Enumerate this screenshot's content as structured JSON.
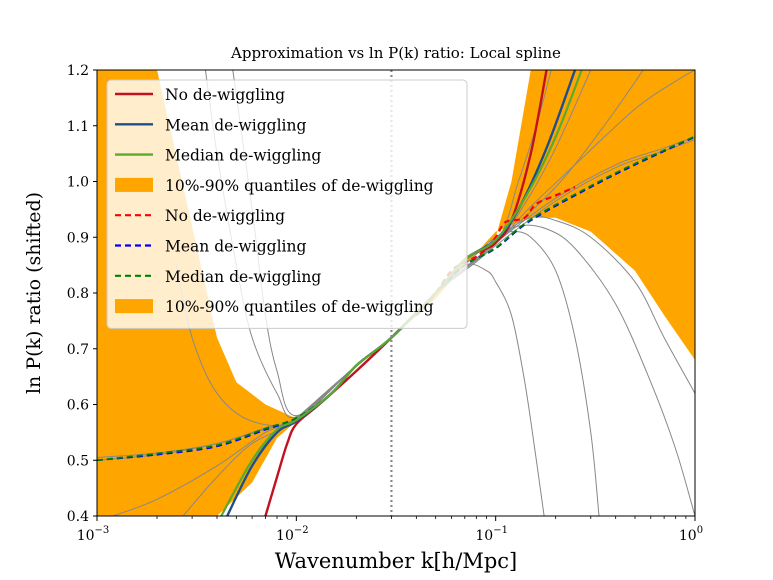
{
  "chart_data": {
    "type": "line",
    "title": "Approximation vs ln P(k) ratio: Local spline",
    "xlabel": "Wavenumber k[h/Mpc]",
    "ylabel": "ln P(k) ratio (shifted)",
    "xscale": "log",
    "xlim": [
      0.001,
      1
    ],
    "ylim": [
      0.4,
      1.2
    ],
    "x_ticks": [
      {
        "value": 0.001,
        "label": "10",
        "exp": "−3"
      },
      {
        "value": 0.01,
        "label": "10",
        "exp": "−2"
      },
      {
        "value": 0.1,
        "label": "10",
        "exp": "−1"
      },
      {
        "value": 1,
        "label": "10",
        "exp": "0"
      }
    ],
    "y_ticks": [
      {
        "value": 0.4,
        "label": "0.4"
      },
      {
        "value": 0.5,
        "label": "0.5"
      },
      {
        "value": 0.6,
        "label": "0.6"
      },
      {
        "value": 0.7,
        "label": "0.7"
      },
      {
        "value": 0.8,
        "label": "0.8"
      },
      {
        "value": 0.9,
        "label": "0.9"
      },
      {
        "value": 1.0,
        "label": "1.0"
      },
      {
        "value": 1.1,
        "label": "1.1"
      },
      {
        "value": 1.2,
        "label": "1.2"
      }
    ],
    "vline_x": 0.03,
    "legend_position": "top-left",
    "colors": {
      "band": "#ffa500",
      "no_dewiggle": "#c1121f",
      "mean_dewiggle": "#1f4e8c",
      "median_dewiggle": "#5aaa2e",
      "no_dewiggle_dashed": "#ff0000",
      "mean_dewiggle_dashed": "#0000ff",
      "median_dewiggle_dashed": "#008000",
      "grey": "#888888",
      "vline": "#888888"
    },
    "legend": [
      {
        "label": "No de-wiggling",
        "kind": "solid",
        "color_key": "no_dewiggle"
      },
      {
        "label": "Mean de-wiggling",
        "kind": "solid",
        "color_key": "mean_dewiggle"
      },
      {
        "label": "Median de-wiggling",
        "kind": "solid",
        "color_key": "median_dewiggle"
      },
      {
        "label": "10%-90% quantiles of de-wiggling",
        "kind": "patch",
        "color_key": "band"
      },
      {
        "label": "No de-wiggling",
        "kind": "dashed",
        "color_key": "no_dewiggle_dashed"
      },
      {
        "label": "Mean de-wiggling",
        "kind": "dashed",
        "color_key": "mean_dewiggle_dashed"
      },
      {
        "label": "Median de-wiggling",
        "kind": "dashed",
        "color_key": "median_dewiggle_dashed"
      },
      {
        "label": "10%-90% quantiles of de-wiggling",
        "kind": "patch",
        "color_key": "band"
      }
    ],
    "band_upper": [
      [
        0.001,
        1.2
      ],
      [
        0.0015,
        1.2
      ],
      [
        0.002,
        1.2
      ],
      [
        0.003,
        0.92
      ],
      [
        0.004,
        0.72
      ],
      [
        0.005,
        0.64
      ],
      [
        0.007,
        0.6
      ],
      [
        0.01,
        0.575
      ],
      [
        0.015,
        0.62
      ],
      [
        0.02,
        0.67
      ],
      [
        0.03,
        0.72
      ],
      [
        0.05,
        0.8
      ],
      [
        0.07,
        0.86
      ],
      [
        0.1,
        0.9
      ],
      [
        0.12,
        1.0
      ],
      [
        0.15,
        1.2
      ],
      [
        0.3,
        1.2
      ],
      [
        0.5,
        1.2
      ],
      [
        1.0,
        1.2
      ]
    ],
    "band_lower": [
      [
        0.001,
        0.4
      ],
      [
        0.002,
        0.4
      ],
      [
        0.004,
        0.4
      ],
      [
        0.006,
        0.46
      ],
      [
        0.008,
        0.54
      ],
      [
        0.01,
        0.57
      ],
      [
        0.015,
        0.62
      ],
      [
        0.02,
        0.67
      ],
      [
        0.03,
        0.72
      ],
      [
        0.05,
        0.79
      ],
      [
        0.07,
        0.85
      ],
      [
        0.1,
        0.91
      ],
      [
        0.15,
        0.935
      ],
      [
        0.2,
        0.935
      ],
      [
        0.3,
        0.91
      ],
      [
        0.5,
        0.84
      ],
      [
        0.7,
        0.76
      ],
      [
        1.0,
        0.68
      ]
    ],
    "series": [
      {
        "name": "No de-wiggling",
        "style": "solid",
        "color_key": "no_dewiggle",
        "width": 2.4,
        "points": [
          [
            0.007,
            0.4
          ],
          [
            0.008,
            0.47
          ],
          [
            0.009,
            0.53
          ],
          [
            0.01,
            0.565
          ],
          [
            0.013,
            0.6
          ],
          [
            0.02,
            0.66
          ],
          [
            0.03,
            0.72
          ],
          [
            0.05,
            0.8
          ],
          [
            0.07,
            0.86
          ],
          [
            0.09,
            0.88
          ],
          [
            0.1,
            0.89
          ],
          [
            0.12,
            0.93
          ],
          [
            0.15,
            1.05
          ],
          [
            0.18,
            1.2
          ]
        ]
      },
      {
        "name": "Mean de-wiggling",
        "style": "solid",
        "color_key": "mean_dewiggle",
        "width": 2.4,
        "points": [
          [
            0.0045,
            0.4
          ],
          [
            0.006,
            0.49
          ],
          [
            0.008,
            0.55
          ],
          [
            0.01,
            0.57
          ],
          [
            0.015,
            0.62
          ],
          [
            0.02,
            0.67
          ],
          [
            0.03,
            0.72
          ],
          [
            0.05,
            0.8
          ],
          [
            0.07,
            0.86
          ],
          [
            0.1,
            0.895
          ],
          [
            0.13,
            0.95
          ],
          [
            0.18,
            1.06
          ],
          [
            0.25,
            1.2
          ]
        ]
      },
      {
        "name": "Median de-wiggling",
        "style": "solid",
        "color_key": "median_dewiggle",
        "width": 2.2,
        "points": [
          [
            0.0042,
            0.4
          ],
          [
            0.006,
            0.5
          ],
          [
            0.008,
            0.555
          ],
          [
            0.01,
            0.572
          ],
          [
            0.015,
            0.62
          ],
          [
            0.02,
            0.67
          ],
          [
            0.03,
            0.72
          ],
          [
            0.05,
            0.8
          ],
          [
            0.07,
            0.86
          ],
          [
            0.1,
            0.895
          ],
          [
            0.14,
            0.97
          ],
          [
            0.2,
            1.08
          ],
          [
            0.27,
            1.2
          ]
        ]
      },
      {
        "name": "Mean de-wiggling",
        "style": "dashed",
        "color_key": "mean_dewiggle_dashed",
        "width": 1.8,
        "points": [
          [
            0.001,
            0.5
          ],
          [
            0.002,
            0.51
          ],
          [
            0.004,
            0.525
          ],
          [
            0.007,
            0.555
          ],
          [
            0.01,
            0.575
          ],
          [
            0.015,
            0.62
          ],
          [
            0.02,
            0.67
          ],
          [
            0.03,
            0.72
          ],
          [
            0.05,
            0.8
          ],
          [
            0.07,
            0.85
          ],
          [
            0.1,
            0.88
          ],
          [
            0.15,
            0.93
          ],
          [
            0.3,
            0.99
          ],
          [
            0.5,
            1.03
          ],
          [
            1.0,
            1.08
          ]
        ]
      },
      {
        "name": "Median de-wiggling",
        "style": "dashed",
        "color_key": "median_dewiggle_dashed",
        "width": 1.8,
        "points": [
          [
            0.001,
            0.5
          ],
          [
            0.002,
            0.512
          ],
          [
            0.004,
            0.527
          ],
          [
            0.007,
            0.557
          ],
          [
            0.01,
            0.576
          ],
          [
            0.015,
            0.62
          ],
          [
            0.02,
            0.67
          ],
          [
            0.03,
            0.72
          ],
          [
            0.05,
            0.8
          ],
          [
            0.07,
            0.85
          ],
          [
            0.1,
            0.881
          ],
          [
            0.15,
            0.932
          ],
          [
            0.3,
            0.992
          ],
          [
            0.5,
            1.032
          ],
          [
            1.0,
            1.081
          ]
        ]
      },
      {
        "name": "No de-wiggling",
        "style": "dashed",
        "color_key": "no_dewiggle_dashed",
        "width": 2.2,
        "points": [
          [
            0.04,
            0.76
          ],
          [
            0.05,
            0.8
          ],
          [
            0.06,
            0.84
          ],
          [
            0.07,
            0.855
          ],
          [
            0.08,
            0.865
          ],
          [
            0.09,
            0.88
          ],
          [
            0.1,
            0.9
          ],
          [
            0.11,
            0.925
          ],
          [
            0.12,
            0.93
          ],
          [
            0.14,
            0.935
          ],
          [
            0.16,
            0.96
          ],
          [
            0.2,
            0.975
          ],
          [
            0.25,
            0.99
          ]
        ]
      },
      {
        "name": "",
        "style": "thin",
        "color_key": "grey",
        "width": 1.0,
        "points": [
          [
            0.001,
            0.5
          ],
          [
            0.002,
            0.51
          ],
          [
            0.004,
            0.53
          ],
          [
            0.007,
            0.556
          ],
          [
            0.01,
            0.575
          ],
          [
            0.02,
            0.67
          ],
          [
            0.03,
            0.72
          ],
          [
            0.05,
            0.8
          ],
          [
            0.1,
            0.89
          ],
          [
            0.2,
            0.97
          ],
          [
            0.4,
            1.03
          ],
          [
            0.7,
            1.06
          ],
          [
            1.0,
            1.08
          ]
        ]
      },
      {
        "name": "",
        "style": "thin",
        "color_key": "grey",
        "width": 1.0,
        "points": [
          [
            0.001,
            0.505
          ],
          [
            0.002,
            0.513
          ],
          [
            0.004,
            0.53
          ],
          [
            0.007,
            0.558
          ],
          [
            0.01,
            0.576
          ],
          [
            0.02,
            0.67
          ],
          [
            0.03,
            0.72
          ],
          [
            0.05,
            0.8
          ],
          [
            0.1,
            0.885
          ],
          [
            0.2,
            0.965
          ],
          [
            0.4,
            1.025
          ],
          [
            0.7,
            1.055
          ],
          [
            1.0,
            1.075
          ]
        ]
      },
      {
        "name": "",
        "style": "thin",
        "color_key": "grey",
        "width": 1.0,
        "points": [
          [
            0.0035,
            1.2
          ],
          [
            0.004,
            1.05
          ],
          [
            0.005,
            0.85
          ],
          [
            0.006,
            0.72
          ],
          [
            0.008,
            0.62
          ],
          [
            0.01,
            0.578
          ],
          [
            0.02,
            0.67
          ],
          [
            0.03,
            0.72
          ],
          [
            0.05,
            0.8
          ],
          [
            0.08,
            0.87
          ],
          [
            0.1,
            0.9
          ],
          [
            0.15,
            0.935
          ],
          [
            0.2,
            0.93
          ],
          [
            0.3,
            0.9
          ],
          [
            0.5,
            0.82
          ],
          [
            0.7,
            0.72
          ],
          [
            1.0,
            0.62
          ]
        ]
      },
      {
        "name": "",
        "style": "thin",
        "color_key": "grey",
        "width": 1.0,
        "points": [
          [
            0.0048,
            1.2
          ],
          [
            0.006,
            0.95
          ],
          [
            0.007,
            0.76
          ],
          [
            0.008,
            0.66
          ],
          [
            0.01,
            0.58
          ],
          [
            0.02,
            0.67
          ],
          [
            0.03,
            0.72
          ],
          [
            0.05,
            0.8
          ],
          [
            0.08,
            0.86
          ],
          [
            0.1,
            0.9
          ],
          [
            0.12,
            0.91
          ],
          [
            0.15,
            0.9
          ],
          [
            0.2,
            0.84
          ],
          [
            0.25,
            0.72
          ],
          [
            0.3,
            0.55
          ],
          [
            0.33,
            0.4
          ]
        ]
      },
      {
        "name": "",
        "style": "thin",
        "color_key": "grey",
        "width": 1.0,
        "points": [
          [
            0.0025,
            0.85
          ],
          [
            0.003,
            0.72
          ],
          [
            0.004,
            0.62
          ],
          [
            0.006,
            0.57
          ],
          [
            0.01,
            0.573
          ],
          [
            0.02,
            0.67
          ],
          [
            0.03,
            0.72
          ],
          [
            0.05,
            0.8
          ],
          [
            0.1,
            0.89
          ],
          [
            0.13,
            1.0
          ],
          [
            0.16,
            1.1
          ],
          [
            0.19,
            1.2
          ]
        ]
      },
      {
        "name": "",
        "style": "thin",
        "color_key": "grey",
        "width": 1.0,
        "points": [
          [
            0.0027,
            0.4
          ],
          [
            0.004,
            0.47
          ],
          [
            0.006,
            0.53
          ],
          [
            0.01,
            0.572
          ],
          [
            0.02,
            0.67
          ],
          [
            0.03,
            0.72
          ],
          [
            0.05,
            0.8
          ],
          [
            0.1,
            0.89
          ],
          [
            0.14,
            0.96
          ],
          [
            0.2,
            1.06
          ],
          [
            0.3,
            1.2
          ]
        ]
      },
      {
        "name": "",
        "style": "thin",
        "color_key": "grey",
        "width": 1.0,
        "points": [
          [
            0.0012,
            0.4
          ],
          [
            0.002,
            0.43
          ],
          [
            0.004,
            0.49
          ],
          [
            0.007,
            0.55
          ],
          [
            0.01,
            0.574
          ],
          [
            0.02,
            0.67
          ],
          [
            0.03,
            0.72
          ],
          [
            0.05,
            0.8
          ],
          [
            0.1,
            0.89
          ],
          [
            0.2,
            0.99
          ],
          [
            0.35,
            1.1
          ],
          [
            0.55,
            1.2
          ]
        ]
      },
      {
        "name": "",
        "style": "thin",
        "color_key": "grey",
        "width": 1.0,
        "points": [
          [
            0.01,
            0.575
          ],
          [
            0.02,
            0.67
          ],
          [
            0.03,
            0.72
          ],
          [
            0.05,
            0.8
          ],
          [
            0.08,
            0.86
          ],
          [
            0.1,
            0.895
          ],
          [
            0.13,
            0.92
          ],
          [
            0.18,
            0.915
          ],
          [
            0.25,
            0.88
          ],
          [
            0.4,
            0.78
          ],
          [
            0.6,
            0.64
          ],
          [
            0.8,
            0.52
          ],
          [
            1.0,
            0.4
          ]
        ]
      },
      {
        "name": "",
        "style": "thin",
        "color_key": "grey",
        "width": 1.0,
        "points": [
          [
            0.01,
            0.575
          ],
          [
            0.02,
            0.67
          ],
          [
            0.03,
            0.72
          ],
          [
            0.05,
            0.8
          ],
          [
            0.1,
            0.89
          ],
          [
            0.15,
            0.955
          ],
          [
            0.25,
            1.03
          ],
          [
            0.5,
            1.13
          ],
          [
            0.8,
            1.18
          ],
          [
            1.0,
            1.2
          ]
        ]
      },
      {
        "name": "",
        "style": "thin",
        "color_key": "grey",
        "width": 1.0,
        "points": [
          [
            0.05,
            0.8
          ],
          [
            0.07,
            0.85
          ],
          [
            0.09,
            0.84
          ],
          [
            0.1,
            0.82
          ],
          [
            0.12,
            0.76
          ],
          [
            0.14,
            0.64
          ],
          [
            0.16,
            0.5
          ],
          [
            0.175,
            0.4
          ]
        ]
      }
    ]
  }
}
